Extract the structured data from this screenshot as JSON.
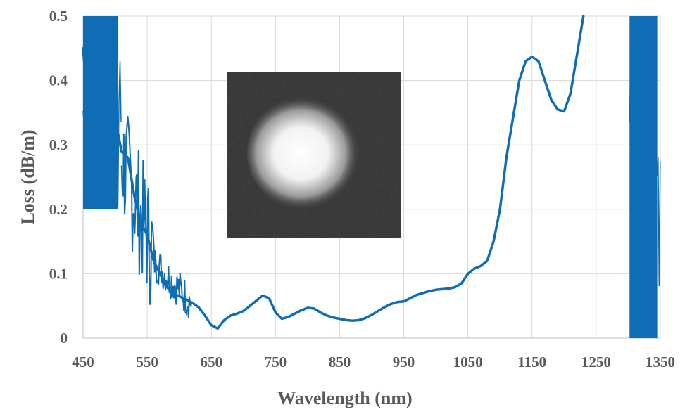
{
  "chart_data": {
    "type": "line",
    "title": "",
    "xlabel": "Wavelength (nm)",
    "ylabel": "Loss (dB/m)",
    "xlim": [
      450,
      1350
    ],
    "ylim": [
      0,
      0.5
    ],
    "x_ticks": [
      450,
      550,
      650,
      750,
      850,
      950,
      1050,
      1150,
      1250,
      1350
    ],
    "x_tick_labels": [
      "450",
      "550",
      "650",
      "750",
      "850",
      "950",
      "1050",
      "1150",
      "1250",
      "1350"
    ],
    "y_ticks": [
      0,
      0.1,
      0.2,
      0.3,
      0.4,
      0.5
    ],
    "y_tick_labels": [
      "0",
      "0.1",
      "0.2",
      "0.3",
      "0.4",
      "0.5"
    ],
    "grid": true,
    "legend": "none",
    "line_color": "#0f6db5",
    "inset": "near-field mode image (bright circular spot on dark background)",
    "series": [
      {
        "name": "Loss",
        "x": [
          450,
          460,
          470,
          480,
          490,
          500,
          510,
          520,
          530,
          540,
          550,
          560,
          570,
          580,
          590,
          600,
          610,
          620,
          630,
          640,
          650,
          660,
          670,
          680,
          690,
          700,
          710,
          720,
          730,
          740,
          750,
          760,
          770,
          780,
          790,
          800,
          810,
          820,
          830,
          840,
          850,
          860,
          870,
          880,
          890,
          900,
          910,
          920,
          930,
          940,
          950,
          960,
          970,
          980,
          990,
          1000,
          1010,
          1020,
          1030,
          1040,
          1050,
          1060,
          1070,
          1080,
          1090,
          1100,
          1110,
          1120,
          1130,
          1140,
          1150,
          1160,
          1170,
          1180,
          1190,
          1200,
          1210,
          1220,
          1230
        ],
        "values": [
          0.45,
          0.33,
          0.37,
          0.32,
          0.36,
          0.34,
          0.29,
          0.28,
          0.22,
          0.18,
          0.16,
          0.12,
          0.1,
          0.08,
          0.07,
          0.065,
          0.06,
          0.055,
          0.048,
          0.035,
          0.02,
          0.015,
          0.028,
          0.035,
          0.038,
          0.042,
          0.05,
          0.058,
          0.066,
          0.062,
          0.04,
          0.03,
          0.033,
          0.038,
          0.043,
          0.047,
          0.046,
          0.04,
          0.035,
          0.032,
          0.03,
          0.028,
          0.027,
          0.028,
          0.031,
          0.036,
          0.042,
          0.048,
          0.053,
          0.056,
          0.057,
          0.062,
          0.067,
          0.07,
          0.073,
          0.075,
          0.076,
          0.077,
          0.079,
          0.085,
          0.1,
          0.108,
          0.112,
          0.12,
          0.15,
          0.2,
          0.28,
          0.34,
          0.4,
          0.43,
          0.437,
          0.43,
          0.4,
          0.37,
          0.355,
          0.352,
          0.38,
          0.44,
          0.5
        ]
      }
    ],
    "noisy_regions": [
      {
        "x_range": [
          450,
          510
        ],
        "y_range": [
          0.2,
          0.5
        ]
      },
      {
        "x_range": [
          1302,
          1350
        ],
        "y_range": [
          0,
          0.5
        ]
      }
    ]
  }
}
